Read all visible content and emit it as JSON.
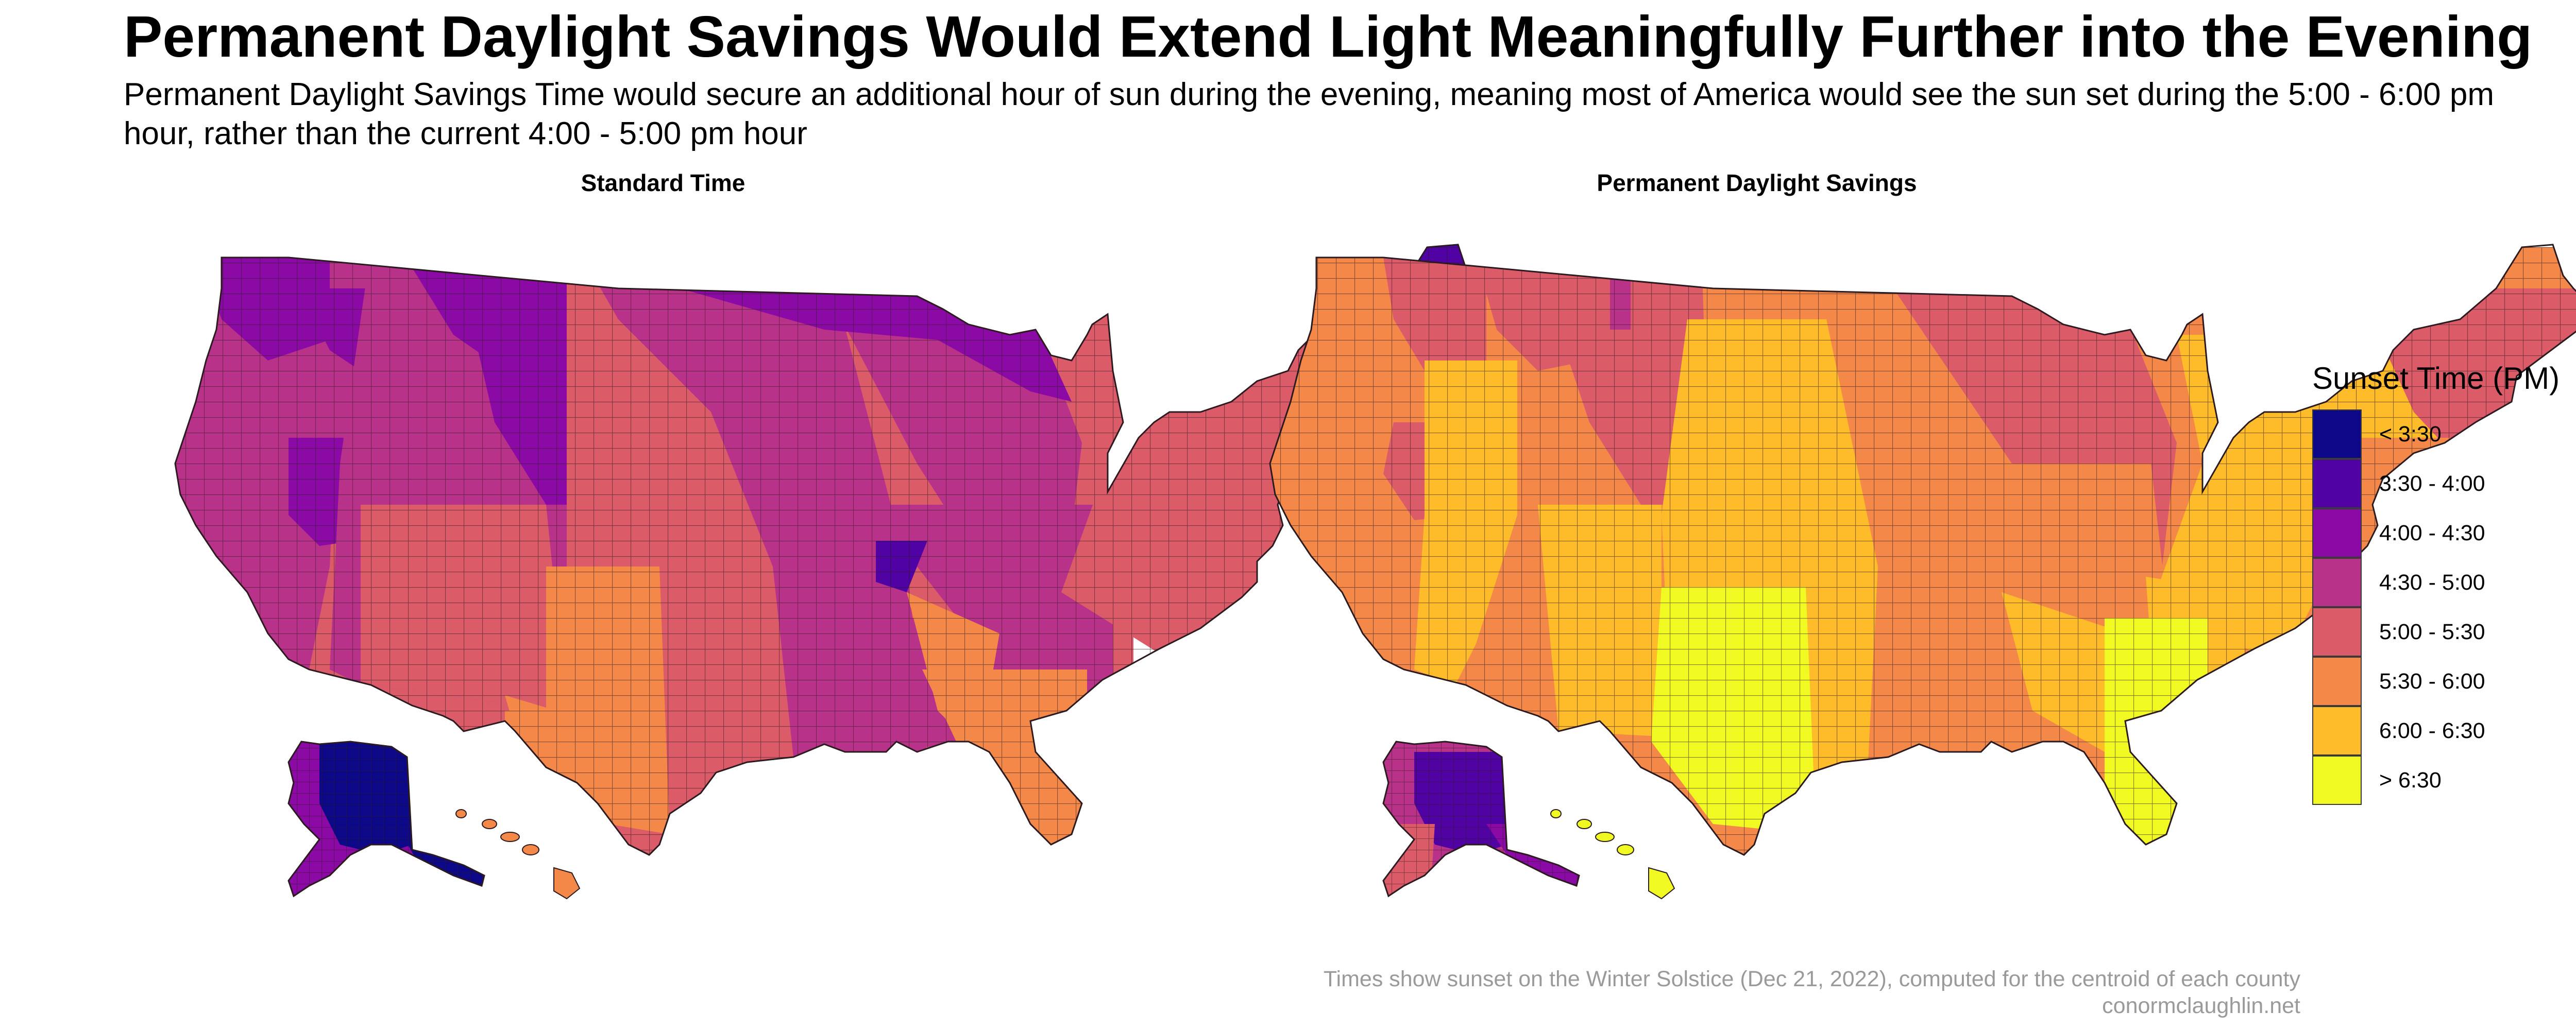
{
  "title": "Permanent Daylight Savings Would Extend Light Meaningfully Further into the Evening",
  "subtitle": "Permanent Daylight Savings Time would secure an additional hour of sun during the evening, meaning most of America would see the sun set during the 5:00 - 6:00 pm hour, rather than the current 4:00 - 5:00 pm hour",
  "panels": [
    {
      "title": "Standard Time"
    },
    {
      "title": "Permanent Daylight Savings"
    }
  ],
  "legend": {
    "title": "Sunset Time (PM)",
    "items": [
      {
        "label": "< 3:30",
        "color": "#0d0887"
      },
      {
        "label": "3:30 - 4:00",
        "color": "#5002a2"
      },
      {
        "label": "4:00 - 4:30",
        "color": "#8b0aa5"
      },
      {
        "label": "4:30 - 5:00",
        "color": "#b93289"
      },
      {
        "label": "5:00 - 5:30",
        "color": "#db5c68"
      },
      {
        "label": "5:30 - 6:00",
        "color": "#f48849"
      },
      {
        "label": "6:00 - 6:30",
        "color": "#febc2a"
      },
      {
        "label": "> 6:30",
        "color": "#f0f921"
      }
    ]
  },
  "caption_line1": "Times show sunset on the Winter Solstice (Dec 21, 2022), computed for the centroid of each county",
  "caption_line2": "conormclaughlin.net"
}
